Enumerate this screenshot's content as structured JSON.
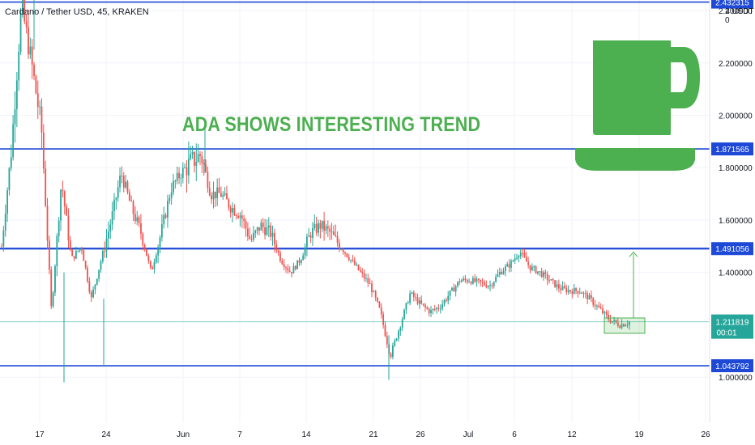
{
  "header": {
    "symbol_title": "Cardano / Tether USD, 45, KRAKEN",
    "currency_label": "2 USDT 0"
  },
  "annotation": {
    "headline": "ADA SHOWS INTERESTING TREND"
  },
  "colors": {
    "level_line": "#1e49d6",
    "candle_up": "#26a69a",
    "candle_down": "#ef5350",
    "accent_green": "#4caf50",
    "price_tag_green": "#26a69a",
    "grid": "#f0f3fa"
  },
  "icons": [
    "coffee-cup-icon"
  ],
  "chart_data": {
    "type": "candlestick",
    "title": "Cardano / Tether USD, 45, KRAKEN",
    "xlabel": "",
    "ylabel": "",
    "ylim": [
      0.955,
      2.55
    ],
    "x_ticks": [
      "17",
      "24",
      "Jun",
      "7",
      "14",
      "21",
      "26",
      "Jul",
      "6",
      "12",
      "19",
      "26"
    ],
    "y_ticks": [
      "2.400000",
      "2.200000",
      "2.000000",
      "1.800000",
      "1.600000",
      "1.400000",
      "1.000000"
    ],
    "y_tick_values": [
      2.4,
      2.2,
      2.0,
      1.8,
      1.6,
      1.4,
      1.0
    ],
    "grid": true,
    "horizontal_levels": [
      {
        "label": "2.432315",
        "value": 2.432315
      },
      {
        "label": "1.871565",
        "value": 1.871565
      },
      {
        "label": "1.491056",
        "value": 1.491056
      },
      {
        "label": "1.043792",
        "value": 1.043792
      }
    ],
    "current_price": {
      "label": "1.211819",
      "countdown": "00:01",
      "value": 1.211819
    },
    "price_path": [
      {
        "date": "May 14",
        "price": 1.5
      },
      {
        "date": "May 15",
        "price": 1.88
      },
      {
        "date": "May 16",
        "price": 2.42
      },
      {
        "date": "May 17",
        "price": 2.2
      },
      {
        "date": "May 18",
        "price": 1.95
      },
      {
        "date": "May 19",
        "price": 1.25
      },
      {
        "date": "May 20",
        "price": 1.75
      },
      {
        "date": "May 21",
        "price": 1.45
      },
      {
        "date": "May 22",
        "price": 1.5
      },
      {
        "date": "May 23",
        "price": 1.3
      },
      {
        "date": "May 24",
        "price": 1.45
      },
      {
        "date": "May 25",
        "price": 1.6
      },
      {
        "date": "May 26",
        "price": 1.78
      },
      {
        "date": "May 27",
        "price": 1.65
      },
      {
        "date": "May 28",
        "price": 1.55
      },
      {
        "date": "May 29",
        "price": 1.4
      },
      {
        "date": "May 30",
        "price": 1.55
      },
      {
        "date": "May 31",
        "price": 1.72
      },
      {
        "date": "Jun 1",
        "price": 1.78
      },
      {
        "date": "Jun 2",
        "price": 1.82
      },
      {
        "date": "Jun 3",
        "price": 1.85
      },
      {
        "date": "Jun 4",
        "price": 1.7
      },
      {
        "date": "Jun 5",
        "price": 1.7
      },
      {
        "date": "Jun 6",
        "price": 1.65
      },
      {
        "date": "Jun 7",
        "price": 1.62
      },
      {
        "date": "Jun 8",
        "price": 1.52
      },
      {
        "date": "Jun 9",
        "price": 1.58
      },
      {
        "date": "Jun 10",
        "price": 1.55
      },
      {
        "date": "Jun 11",
        "price": 1.45
      },
      {
        "date": "Jun 12",
        "price": 1.4
      },
      {
        "date": "Jun 13",
        "price": 1.45
      },
      {
        "date": "Jun 14",
        "price": 1.55
      },
      {
        "date": "Jun 15",
        "price": 1.58
      },
      {
        "date": "Jun 16",
        "price": 1.55
      },
      {
        "date": "Jun 17",
        "price": 1.5
      },
      {
        "date": "Jun 18",
        "price": 1.45
      },
      {
        "date": "Jun 19",
        "price": 1.4
      },
      {
        "date": "Jun 20",
        "price": 1.35
      },
      {
        "date": "Jun 21",
        "price": 1.25
      },
      {
        "date": "Jun 22",
        "price": 1.08
      },
      {
        "date": "Jun 23",
        "price": 1.2
      },
      {
        "date": "Jun 24",
        "price": 1.32
      },
      {
        "date": "Jun 25",
        "price": 1.28
      },
      {
        "date": "Jun 26",
        "price": 1.25
      },
      {
        "date": "Jun 27",
        "price": 1.27
      },
      {
        "date": "Jun 28",
        "price": 1.32
      },
      {
        "date": "Jun 29",
        "price": 1.37
      },
      {
        "date": "Jun 30",
        "price": 1.37
      },
      {
        "date": "Jul 1",
        "price": 1.36
      },
      {
        "date": "Jul 2",
        "price": 1.35
      },
      {
        "date": "Jul 3",
        "price": 1.4
      },
      {
        "date": "Jul 4",
        "price": 1.43
      },
      {
        "date": "Jul 5",
        "price": 1.48
      },
      {
        "date": "Jul 6",
        "price": 1.42
      },
      {
        "date": "Jul 7",
        "price": 1.4
      },
      {
        "date": "Jul 8",
        "price": 1.37
      },
      {
        "date": "Jul 9",
        "price": 1.34
      },
      {
        "date": "Jul 10",
        "price": 1.33
      },
      {
        "date": "Jul 11",
        "price": 1.33
      },
      {
        "date": "Jul 12",
        "price": 1.3
      },
      {
        "date": "Jul 13",
        "price": 1.26
      },
      {
        "date": "Jul 14",
        "price": 1.22
      },
      {
        "date": "Jul 15",
        "price": 1.2
      },
      {
        "date": "Jul 16",
        "price": 1.21
      }
    ],
    "projection": {
      "box_price_range": [
        1.18,
        1.22
      ],
      "target_price": 1.478
    }
  }
}
